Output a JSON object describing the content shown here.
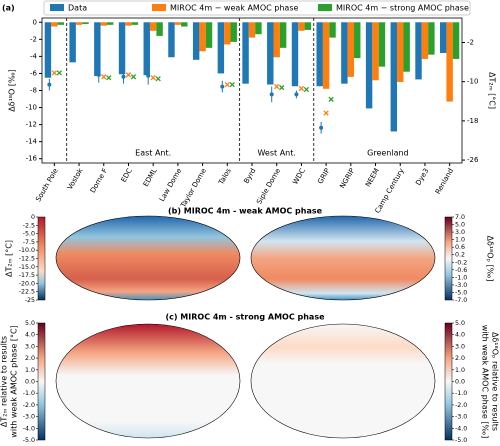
{
  "chart_data": {
    "type": "bar",
    "panel_label": "(a)",
    "ylabel": "Δδ¹⁸O [‰]",
    "y2label": "ΔT₂ₘ [°C]",
    "categories": [
      "South Pole",
      "Vostok",
      "Dome F",
      "EDC",
      "EDML",
      "Law Dome",
      "Taylor Dome",
      "Talos",
      "Byrd",
      "Siple Dome",
      "WDC",
      "GRIP",
      "NGRIP",
      "NEEM",
      "Camp Century",
      "Dye3",
      "Renland"
    ],
    "series": [
      {
        "name": "Data",
        "color": "#1f77b4",
        "values": [
          -6.5,
          -4.7,
          -6.3,
          -6.1,
          -6.2,
          -4.1,
          -4.4,
          -6.0,
          -7.2,
          -7.3,
          -7.5,
          -7.5,
          -7.2,
          -10.1,
          -12.8,
          -6.7,
          -3.6
        ]
      },
      {
        "name": "MIROC 4m − weak AMOC phase",
        "color": "#ff7f0e",
        "values": [
          -0.5,
          -0.3,
          -0.4,
          -0.4,
          -1.0,
          -0.3,
          -3.4,
          -2.6,
          -1.8,
          -4.1,
          -1.0,
          -7.8,
          -6.4,
          -6.8,
          -7.0,
          -4.3,
          -9.3
        ]
      },
      {
        "name": "MIROC 4m − strong AMOC phase",
        "color": "#2ca02c",
        "values": [
          -0.3,
          -0.2,
          -0.3,
          -0.3,
          -1.6,
          -0.5,
          -3.0,
          -2.3,
          -1.4,
          -3.0,
          -0.9,
          -1.8,
          -4.2,
          -5.2,
          -5.8,
          -3.8,
          -4.3
        ]
      }
    ],
    "temperature": {
      "data": [
        -10.6,
        null,
        -8.6,
        -9.0,
        -8.8,
        null,
        null,
        -11.0,
        null,
        -12.6,
        -12.6,
        -19.4,
        null,
        null,
        null,
        null,
        null
      ],
      "error": [
        1.2,
        null,
        1.6,
        1.4,
        1.8,
        null,
        null,
        1.2,
        null,
        1.6,
        0.8,
        1.2,
        null,
        null,
        null,
        null,
        null
      ],
      "weak": [
        -8.2,
        null,
        -9.0,
        -8.6,
        -9.2,
        null,
        null,
        -10.6,
        null,
        -11.0,
        -11.4,
        -16.4,
        null,
        null,
        null,
        null,
        null
      ],
      "strong": [
        -8.2,
        null,
        -9.2,
        -9.0,
        -9.4,
        null,
        null,
        -10.6,
        null,
        -11.2,
        -11.6,
        -13.6,
        null,
        null,
        null,
        null,
        null
      ]
    },
    "regions": [
      "East Ant.",
      "West Ant.",
      "Greenland"
    ],
    "ylim": [
      -16.5,
      0.5
    ],
    "yticks": [
      0,
      -2,
      -4,
      -6,
      -8,
      -10,
      -12,
      -14,
      -16
    ],
    "y2lim": [
      -26.6,
      3
    ],
    "y2ticks": [
      -2,
      -10,
      -18,
      -26
    ]
  },
  "maps": [
    {
      "title": "(b) MIROC 4m - weak AMOC phase",
      "left_colorbar": {
        "label": [
          "ΔT₂ₘ [°C]"
        ],
        "ticks": [
          0,
          -2.5,
          {
            "value": -5,
            "label": "-5.0"
          },
          -7.5,
          {
            "value": -10,
            "label": "-10.0"
          },
          -12.5,
          {
            "value": -15,
            "label": "-15.0"
          },
          -17.5,
          {
            "value": -20,
            "label": "-20.0"
          },
          -22.5,
          -25
        ]
      },
      "right_colorbar": {
        "label": [
          "Δδ¹⁸Oₚ [‰]"
        ],
        "ticks": [
          {
            "value": 7,
            "label": "7.0"
          },
          {
            "value": 5,
            "label": "5.0"
          },
          {
            "value": 3,
            "label": "3.0"
          },
          {
            "value": 1,
            "label": "1.0"
          },
          0.6,
          0.2,
          -0.2,
          -0.6,
          {
            "value": -1,
            "label": "-1.0"
          },
          {
            "value": -3,
            "label": "-3.0"
          },
          {
            "value": -5,
            "label": "-5.0"
          },
          {
            "value": -7,
            "label": "-7.0"
          }
        ]
      }
    },
    {
      "title": "(c) MIROC 4m - strong AMOC phase",
      "left_colorbar": {
        "label": [
          "ΔT₂ₘ relative to results",
          "with weak AMOC phase [°C]"
        ],
        "ticks": [
          {
            "value": 5,
            "label": "5.0"
          },
          {
            "value": 4,
            "label": "4.0"
          },
          {
            "value": 3,
            "label": "3.0"
          },
          {
            "value": 2,
            "label": "2.0"
          },
          {
            "value": 1,
            "label": "1.0"
          },
          {
            "value": 0,
            "label": "0.0"
          },
          {
            "value": -1,
            "label": "-1.0"
          },
          {
            "value": -2,
            "label": "-2.0"
          },
          {
            "value": -3,
            "label": "-3.0"
          },
          {
            "value": -4,
            "label": "-4.0"
          },
          {
            "value": -5,
            "label": "-5.0"
          }
        ]
      },
      "right_colorbar": {
        "label": [
          "Δδ¹⁸Oₚ relative to results",
          "with weak AMOC phase [‰]"
        ],
        "ticks": [
          {
            "value": 5,
            "label": "5.0"
          },
          {
            "value": 4,
            "label": "4.0"
          },
          {
            "value": 3,
            "label": "3.0"
          },
          {
            "value": 2,
            "label": "2.0"
          },
          {
            "value": 1,
            "label": "1.0"
          },
          {
            "value": 0,
            "label": "0.0"
          },
          {
            "value": -1,
            "label": "-1.0"
          },
          {
            "value": -2,
            "label": "-2.0"
          },
          {
            "value": -3,
            "label": "-3.0"
          },
          {
            "value": -4,
            "label": "-4.0"
          },
          {
            "value": -5,
            "label": "-5.0"
          }
        ]
      }
    }
  ]
}
